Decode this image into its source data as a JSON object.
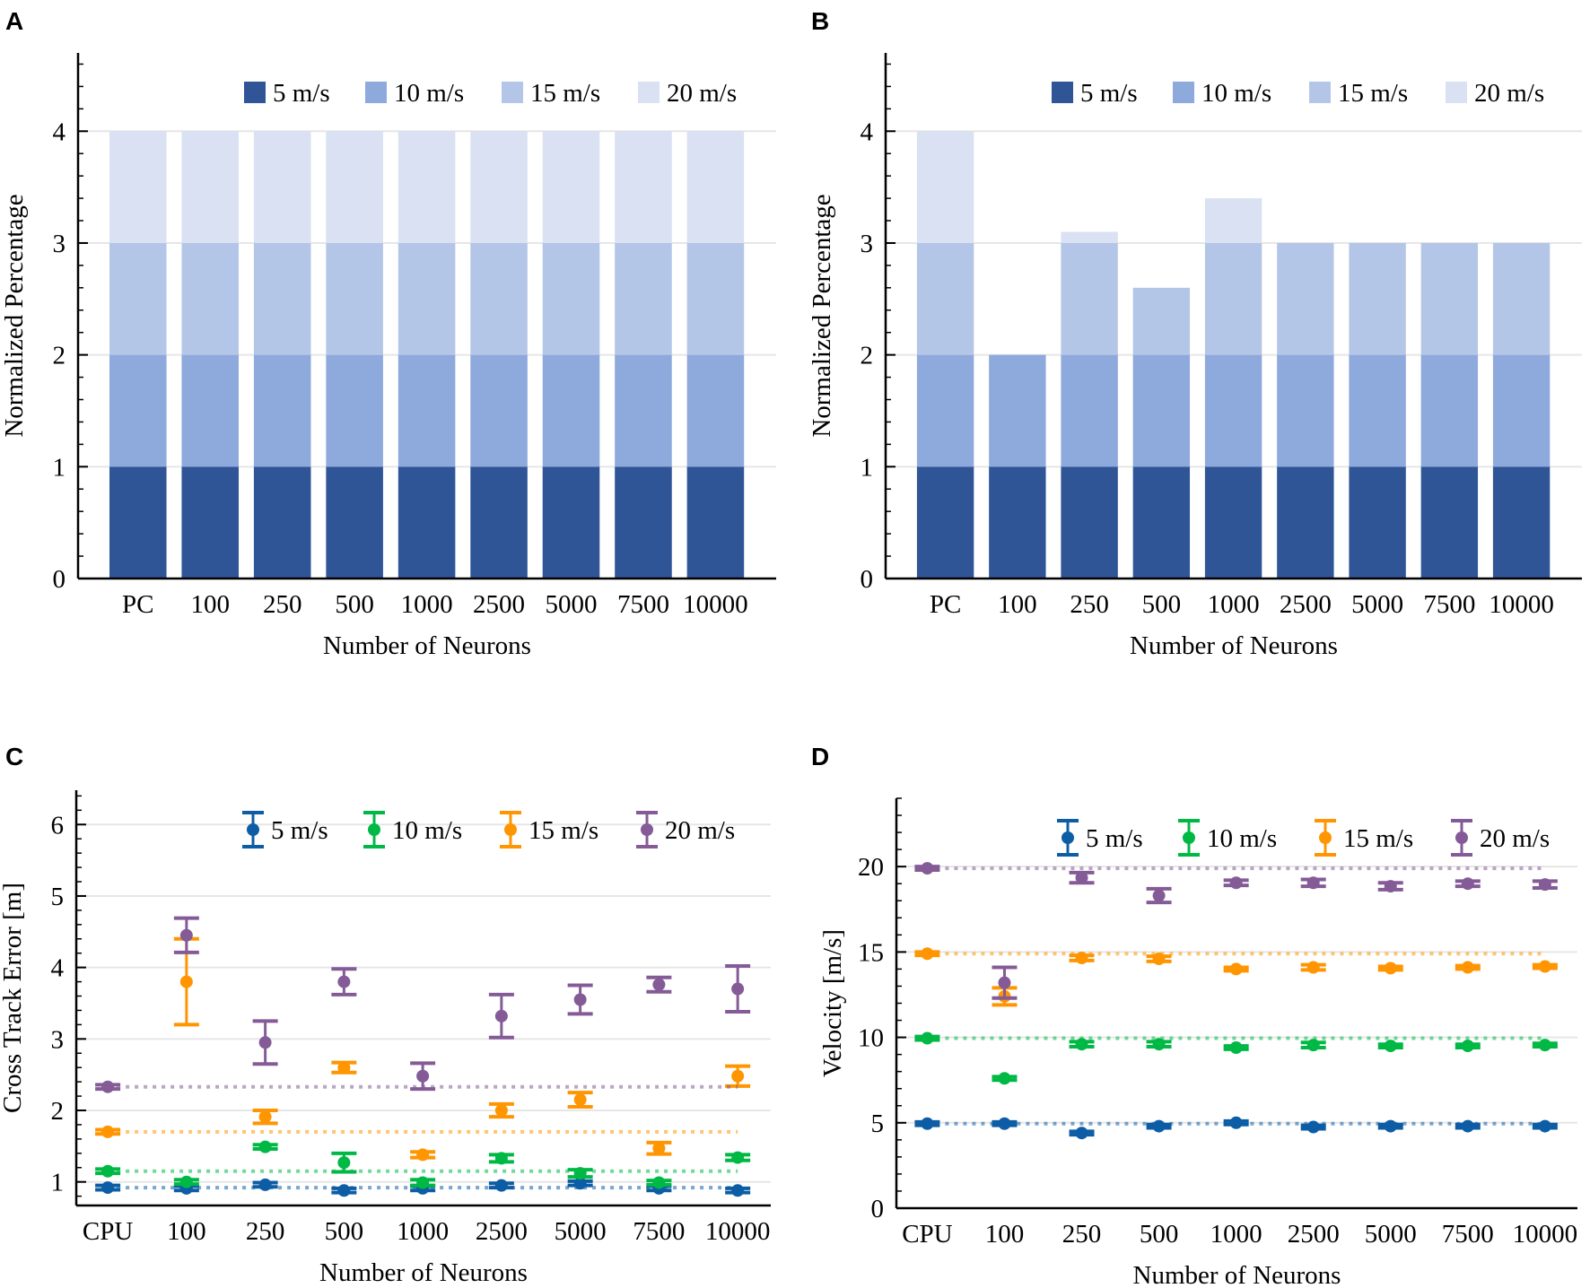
{
  "colors": {
    "bars": [
      "#2F5597",
      "#8EA9DB",
      "#B4C6E7",
      "#D9E1F2"
    ],
    "points": [
      "#0C5DA5",
      "#00B945",
      "#FF9500",
      "#845B97"
    ],
    "grid": "#e6e6e6"
  },
  "chart_data": [
    {
      "panel": "A",
      "type": "bar",
      "stacked": true,
      "xlabel": "Number of Neurons",
      "ylabel": "Normalized Percentage",
      "categories": [
        "PC",
        "100",
        "250",
        "500",
        "1000",
        "2500",
        "5000",
        "7500",
        "10000"
      ],
      "ylim": [
        0,
        4.7
      ],
      "yticks": [
        0,
        1,
        2,
        3,
        4
      ],
      "grid": true,
      "legend": "top-right",
      "series": [
        {
          "name": "5 m/s",
          "values": [
            1,
            1,
            1,
            1,
            1,
            1,
            1,
            1,
            1
          ]
        },
        {
          "name": "10 m/s",
          "values": [
            1,
            1,
            1,
            1,
            1,
            1,
            1,
            1,
            1
          ]
        },
        {
          "name": "15 m/s",
          "values": [
            1,
            1,
            1,
            1,
            1,
            1,
            1,
            1,
            1
          ]
        },
        {
          "name": "20 m/s",
          "values": [
            1,
            1,
            1,
            1,
            1,
            1,
            1,
            1,
            1
          ]
        }
      ]
    },
    {
      "panel": "B",
      "type": "bar",
      "stacked": true,
      "xlabel": "Number of Neurons",
      "ylabel": "Normalized Percentage",
      "categories": [
        "PC",
        "100",
        "250",
        "500",
        "1000",
        "2500",
        "5000",
        "7500",
        "10000"
      ],
      "ylim": [
        0,
        4.7
      ],
      "yticks": [
        0,
        1,
        2,
        3,
        4
      ],
      "grid": true,
      "legend": "top-right",
      "series": [
        {
          "name": "5 m/s",
          "values": [
            1,
            1,
            1,
            1,
            1,
            1,
            1,
            1,
            1
          ]
        },
        {
          "name": "10 m/s",
          "values": [
            1,
            1,
            1,
            1,
            1,
            1,
            1,
            1,
            1
          ]
        },
        {
          "name": "15 m/s",
          "values": [
            1,
            0,
            1,
            0.6,
            1,
            1,
            1,
            1,
            1
          ]
        },
        {
          "name": "20 m/s",
          "values": [
            1,
            0,
            0.1,
            0,
            0.4,
            0,
            0,
            0,
            0
          ]
        }
      ]
    },
    {
      "panel": "C",
      "type": "scatter",
      "errorbars": true,
      "reference_lines": "dotted line at CPU value per series",
      "xlabel": "Number of Neurons",
      "ylabel": "Cross Track Error [m]",
      "categories": [
        "CPU",
        "100",
        "250",
        "500",
        "1000",
        "2500",
        "5000",
        "7500",
        "10000"
      ],
      "ylim": [
        0.67,
        6.48
      ],
      "yticks": [
        1,
        2,
        3,
        4,
        5,
        6
      ],
      "grid": true,
      "legend": "top-right",
      "series": [
        {
          "name": "5 m/s",
          "values": [
            0.92,
            0.91,
            0.96,
            0.88,
            0.91,
            0.95,
            0.98,
            0.91,
            0.88
          ],
          "errors": [
            0.03,
            0.03,
            0.03,
            0.03,
            0.03,
            0.03,
            0.03,
            0.03,
            0.03
          ]
        },
        {
          "name": "10 m/s",
          "values": [
            1.15,
            1.0,
            1.49,
            1.27,
            0.99,
            1.33,
            1.12,
            0.99,
            1.34
          ],
          "errors": [
            0.03,
            0.03,
            0.03,
            0.13,
            0.04,
            0.05,
            0.05,
            0.03,
            0.04
          ]
        },
        {
          "name": "15 m/s",
          "values": [
            1.7,
            3.8,
            1.91,
            2.6,
            1.38,
            2.0,
            2.15,
            1.47,
            2.48
          ],
          "errors": [
            0.03,
            0.6,
            0.09,
            0.07,
            0.04,
            0.09,
            0.1,
            0.08,
            0.14
          ]
        },
        {
          "name": "20 m/s",
          "values": [
            2.33,
            4.45,
            2.95,
            3.8,
            2.48,
            3.32,
            3.55,
            3.76,
            3.7
          ],
          "errors": [
            0.03,
            0.24,
            0.3,
            0.18,
            0.18,
            0.3,
            0.2,
            0.1,
            0.32
          ]
        }
      ]
    },
    {
      "panel": "D",
      "type": "scatter",
      "errorbars": true,
      "reference_lines": "dotted line at CPU value per series",
      "xlabel": "Number of Neurons",
      "ylabel": "Velocity [m/s]",
      "categories": [
        "CPU",
        "100",
        "250",
        "500",
        "1000",
        "2500",
        "5000",
        "7500",
        "10000"
      ],
      "ylim": [
        0,
        24
      ],
      "yticks": [
        0,
        5,
        10,
        15,
        20
      ],
      "grid": true,
      "legend": "top-right",
      "series": [
        {
          "name": "5 m/s",
          "values": [
            4.95,
            4.95,
            4.4,
            4.8,
            5.0,
            4.75,
            4.8,
            4.8,
            4.8
          ],
          "errors": [
            0.1,
            0.1,
            0.1,
            0.1,
            0.1,
            0.1,
            0.1,
            0.1,
            0.1
          ]
        },
        {
          "name": "10 m/s",
          "values": [
            9.95,
            7.6,
            9.6,
            9.6,
            9.4,
            9.55,
            9.5,
            9.5,
            9.55
          ],
          "errors": [
            0.1,
            0.1,
            0.15,
            0.15,
            0.1,
            0.15,
            0.1,
            0.1,
            0.1
          ]
        },
        {
          "name": "15 m/s",
          "values": [
            14.9,
            12.4,
            14.65,
            14.6,
            14.0,
            14.1,
            14.05,
            14.1,
            14.15
          ],
          "errors": [
            0.1,
            0.5,
            0.15,
            0.15,
            0.1,
            0.15,
            0.1,
            0.1,
            0.1
          ]
        },
        {
          "name": "20 m/s",
          "values": [
            19.9,
            13.2,
            19.35,
            18.3,
            19.05,
            19.05,
            18.85,
            19.0,
            18.95
          ],
          "errors": [
            0.1,
            0.9,
            0.3,
            0.4,
            0.15,
            0.2,
            0.2,
            0.15,
            0.2
          ]
        }
      ]
    }
  ]
}
